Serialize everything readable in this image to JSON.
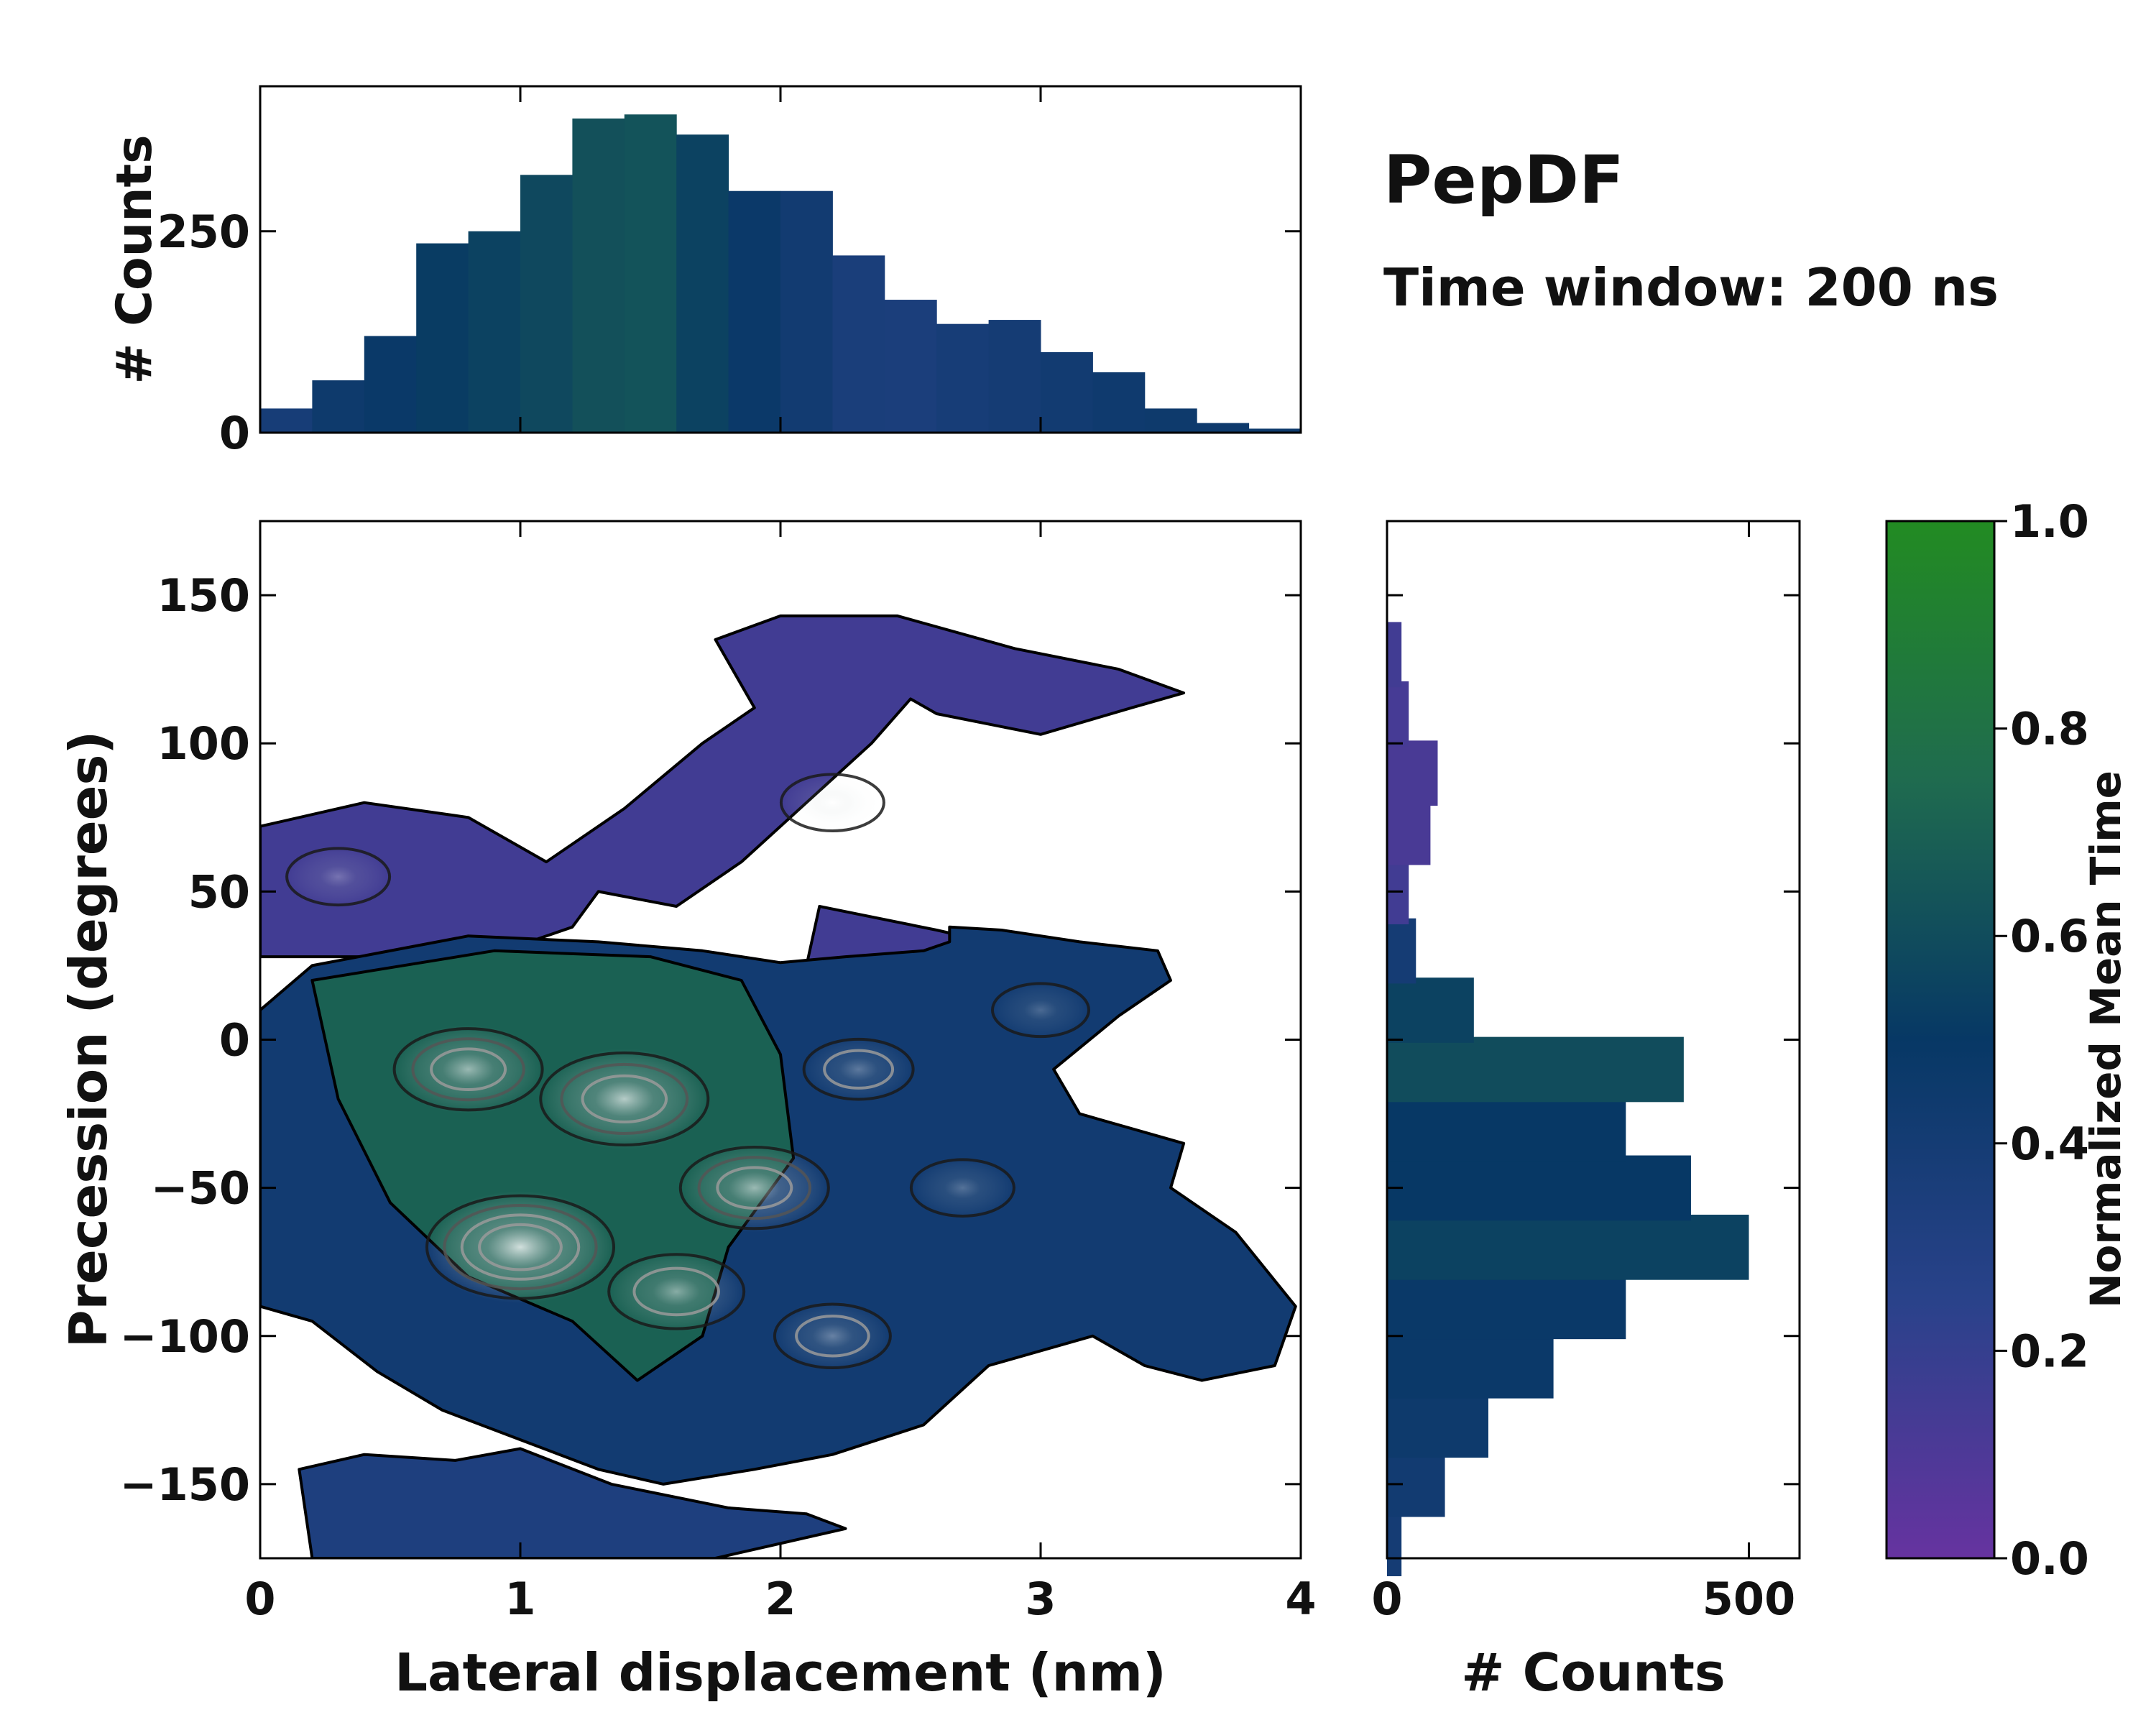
{
  "chart_data": [
    {
      "id": "top-histogram",
      "type": "bar",
      "xlabel": "",
      "ylabel": "# Counts",
      "xlim": [
        0,
        4
      ],
      "ylim": [
        0,
        430
      ],
      "yticks": [
        {
          "v": 0,
          "label": "0"
        },
        {
          "v": 250,
          "label": "250"
        }
      ],
      "x_centers": [
        0.1,
        0.3,
        0.5,
        0.7,
        0.9,
        1.1,
        1.3,
        1.5,
        1.7,
        1.9,
        2.1,
        2.3,
        2.5,
        2.7,
        2.9,
        3.1,
        3.3,
        3.5,
        3.7,
        3.9
      ],
      "values": [
        30,
        65,
        120,
        235,
        250,
        320,
        390,
        395,
        370,
        300,
        300,
        220,
        165,
        135,
        140,
        100,
        75,
        30,
        12,
        5
      ],
      "mean_time": [
        0.38,
        0.45,
        0.48,
        0.52,
        0.55,
        0.58,
        0.62,
        0.63,
        0.55,
        0.47,
        0.42,
        0.36,
        0.35,
        0.38,
        0.4,
        0.42,
        0.44,
        0.45,
        0.45,
        0.45
      ]
    },
    {
      "id": "right-histogram",
      "type": "bar",
      "orientation": "horizontal",
      "xlabel": "# Counts",
      "xlim": [
        0,
        570
      ],
      "xticks": [
        {
          "v": 0,
          "label": "0"
        },
        {
          "v": 500,
          "label": "500"
        }
      ],
      "ylim": [
        -175,
        175
      ],
      "y_centers": [
        -170,
        -150,
        -130,
        -110,
        -90,
        -70,
        -50,
        -30,
        -10,
        10,
        30,
        50,
        70,
        90,
        110,
        130
      ],
      "values": [
        20,
        80,
        140,
        230,
        330,
        500,
        420,
        330,
        410,
        120,
        40,
        30,
        60,
        70,
        30,
        20
      ],
      "mean_time": [
        0.4,
        0.42,
        0.45,
        0.47,
        0.48,
        0.55,
        0.5,
        0.5,
        0.6,
        0.55,
        0.4,
        0.15,
        0.12,
        0.12,
        0.13,
        0.15
      ]
    },
    {
      "id": "main-heatmap",
      "type": "heatmap",
      "xlabel": "Lateral displacement (nm)",
      "ylabel": "Precession (degrees)",
      "xlim": [
        0,
        4
      ],
      "ylim": [
        -175,
        175
      ],
      "xticks": [
        {
          "v": 0,
          "label": "0"
        },
        {
          "v": 1,
          "label": "1"
        },
        {
          "v": 2,
          "label": "2"
        },
        {
          "v": 3,
          "label": "3"
        },
        {
          "v": 4,
          "label": "4"
        }
      ],
      "yticks": [
        {
          "v": 150,
          "label": "150"
        },
        {
          "v": 100,
          "label": "100"
        },
        {
          "v": 50,
          "label": "50"
        },
        {
          "v": 0,
          "label": "0"
        },
        {
          "v": -50,
          "label": "−50"
        },
        {
          "v": -100,
          "label": "−100"
        },
        {
          "v": -150,
          "label": "−150"
        }
      ],
      "regions": [
        {
          "name": "upper-band",
          "polygon": [
            [
              0,
              72
            ],
            [
              0.4,
              80
            ],
            [
              0.8,
              75
            ],
            [
              1.1,
              60
            ],
            [
              1.4,
              78
            ],
            [
              1.7,
              100
            ],
            [
              1.9,
              112
            ],
            [
              1.75,
              135
            ],
            [
              2.0,
              143
            ],
            [
              2.45,
              143
            ],
            [
              2.9,
              132
            ],
            [
              3.3,
              125
            ],
            [
              3.55,
              117
            ],
            [
              3.35,
              112
            ],
            [
              3.0,
              103
            ],
            [
              2.6,
              110
            ],
            [
              2.5,
              115
            ],
            [
              2.35,
              100
            ],
            [
              2.1,
              80
            ],
            [
              1.85,
              60
            ],
            [
              1.6,
              45
            ],
            [
              1.3,
              50
            ],
            [
              1.2,
              38
            ],
            [
              1.0,
              32
            ],
            [
              0.5,
              28
            ],
            [
              0,
              28
            ]
          ],
          "mean_time": 0.15
        },
        {
          "name": "upper-right-patch",
          "polygon": [
            [
              2.15,
              45
            ],
            [
              2.6,
              37
            ],
            [
              2.95,
              30
            ],
            [
              3.3,
              28
            ],
            [
              3.4,
              18
            ],
            [
              3.0,
              8
            ],
            [
              2.55,
              4
            ],
            [
              2.3,
              12
            ],
            [
              2.1,
              25
            ]
          ],
          "mean_time": 0.15
        },
        {
          "name": "right-lobe",
          "polygon": [
            [
              2.25,
              28
            ],
            [
              2.55,
              30
            ],
            [
              2.65,
              33
            ],
            [
              2.65,
              38
            ],
            [
              2.85,
              37
            ],
            [
              3.15,
              33
            ],
            [
              3.45,
              30
            ],
            [
              3.5,
              20
            ],
            [
              3.3,
              8
            ],
            [
              3.05,
              -10
            ],
            [
              3.15,
              -25
            ],
            [
              3.55,
              -35
            ],
            [
              3.5,
              -50
            ],
            [
              3.75,
              -65
            ],
            [
              3.98,
              -90
            ],
            [
              3.9,
              -110
            ],
            [
              3.62,
              -115
            ],
            [
              3.4,
              -110
            ],
            [
              3.2,
              -100
            ],
            [
              2.8,
              -110
            ],
            [
              2.55,
              -130
            ],
            [
              2.2,
              -140
            ],
            [
              1.9,
              -145
            ],
            [
              1.55,
              -150
            ],
            [
              1.3,
              -145
            ],
            [
              1.0,
              -135
            ],
            [
              0.7,
              -125
            ],
            [
              0.45,
              -112
            ],
            [
              0.2,
              -95
            ],
            [
              0,
              -90
            ],
            [
              0,
              10
            ],
            [
              0.2,
              25
            ],
            [
              0.8,
              35
            ],
            [
              1.3,
              33
            ],
            [
              1.7,
              30
            ],
            [
              2.0,
              26
            ]
          ],
          "mean_time": 0.42
        },
        {
          "name": "central-green-core",
          "polygon": [
            [
              0.2,
              20
            ],
            [
              0.9,
              30
            ],
            [
              1.5,
              28
            ],
            [
              1.85,
              20
            ],
            [
              2.0,
              -5
            ],
            [
              2.05,
              -40
            ],
            [
              1.8,
              -70
            ],
            [
              1.7,
              -100
            ],
            [
              1.45,
              -115
            ],
            [
              1.2,
              -95
            ],
            [
              0.8,
              -80
            ],
            [
              0.5,
              -55
            ],
            [
              0.3,
              -20
            ]
          ],
          "mean_time": 0.7
        },
        {
          "name": "bottom-left-lobe",
          "polygon": [
            [
              0.15,
              -145
            ],
            [
              0.4,
              -140
            ],
            [
              0.75,
              -142
            ],
            [
              1.0,
              -138
            ],
            [
              1.35,
              -150
            ],
            [
              1.8,
              -158
            ],
            [
              2.1,
              -160
            ],
            [
              2.25,
              -165
            ],
            [
              1.75,
              -175
            ],
            [
              0.2,
              -175
            ]
          ],
          "mean_time": 0.33
        }
      ],
      "density_peaks": [
        {
          "x": 1.0,
          "y": -70,
          "weight": 1.0
        },
        {
          "x": 1.4,
          "y": -20,
          "weight": 0.85
        },
        {
          "x": 0.8,
          "y": -10,
          "weight": 0.7
        },
        {
          "x": 1.9,
          "y": -50,
          "weight": 0.7
        },
        {
          "x": 1.6,
          "y": -85,
          "weight": 0.6
        },
        {
          "x": 2.2,
          "y": -100,
          "weight": 0.45
        },
        {
          "x": 2.3,
          "y": -10,
          "weight": 0.4
        },
        {
          "x": 0.3,
          "y": 55,
          "weight": 0.35
        },
        {
          "x": 2.2,
          "y": 80,
          "weight": 0.35
        },
        {
          "x": 2.7,
          "y": -50,
          "weight": 0.35
        },
        {
          "x": 3.0,
          "y": 10,
          "weight": 0.3
        }
      ]
    }
  ],
  "annotation": {
    "title": "PepDF",
    "subtitle": "Time window: 200 ns"
  },
  "colorbar": {
    "label": "Normalized Mean Time",
    "min": 0.0,
    "max": 1.0,
    "ticks": [
      {
        "v": 0.0,
        "label": "0.0"
      },
      {
        "v": 0.2,
        "label": "0.2"
      },
      {
        "v": 0.4,
        "label": "0.4"
      },
      {
        "v": 0.6,
        "label": "0.6"
      },
      {
        "v": 0.8,
        "label": "0.8"
      },
      {
        "v": 1.0,
        "label": "1.0"
      }
    ],
    "colors": [
      "#6633a0",
      "#29428a",
      "#073865",
      "#1f6b4f",
      "#228b22"
    ]
  }
}
